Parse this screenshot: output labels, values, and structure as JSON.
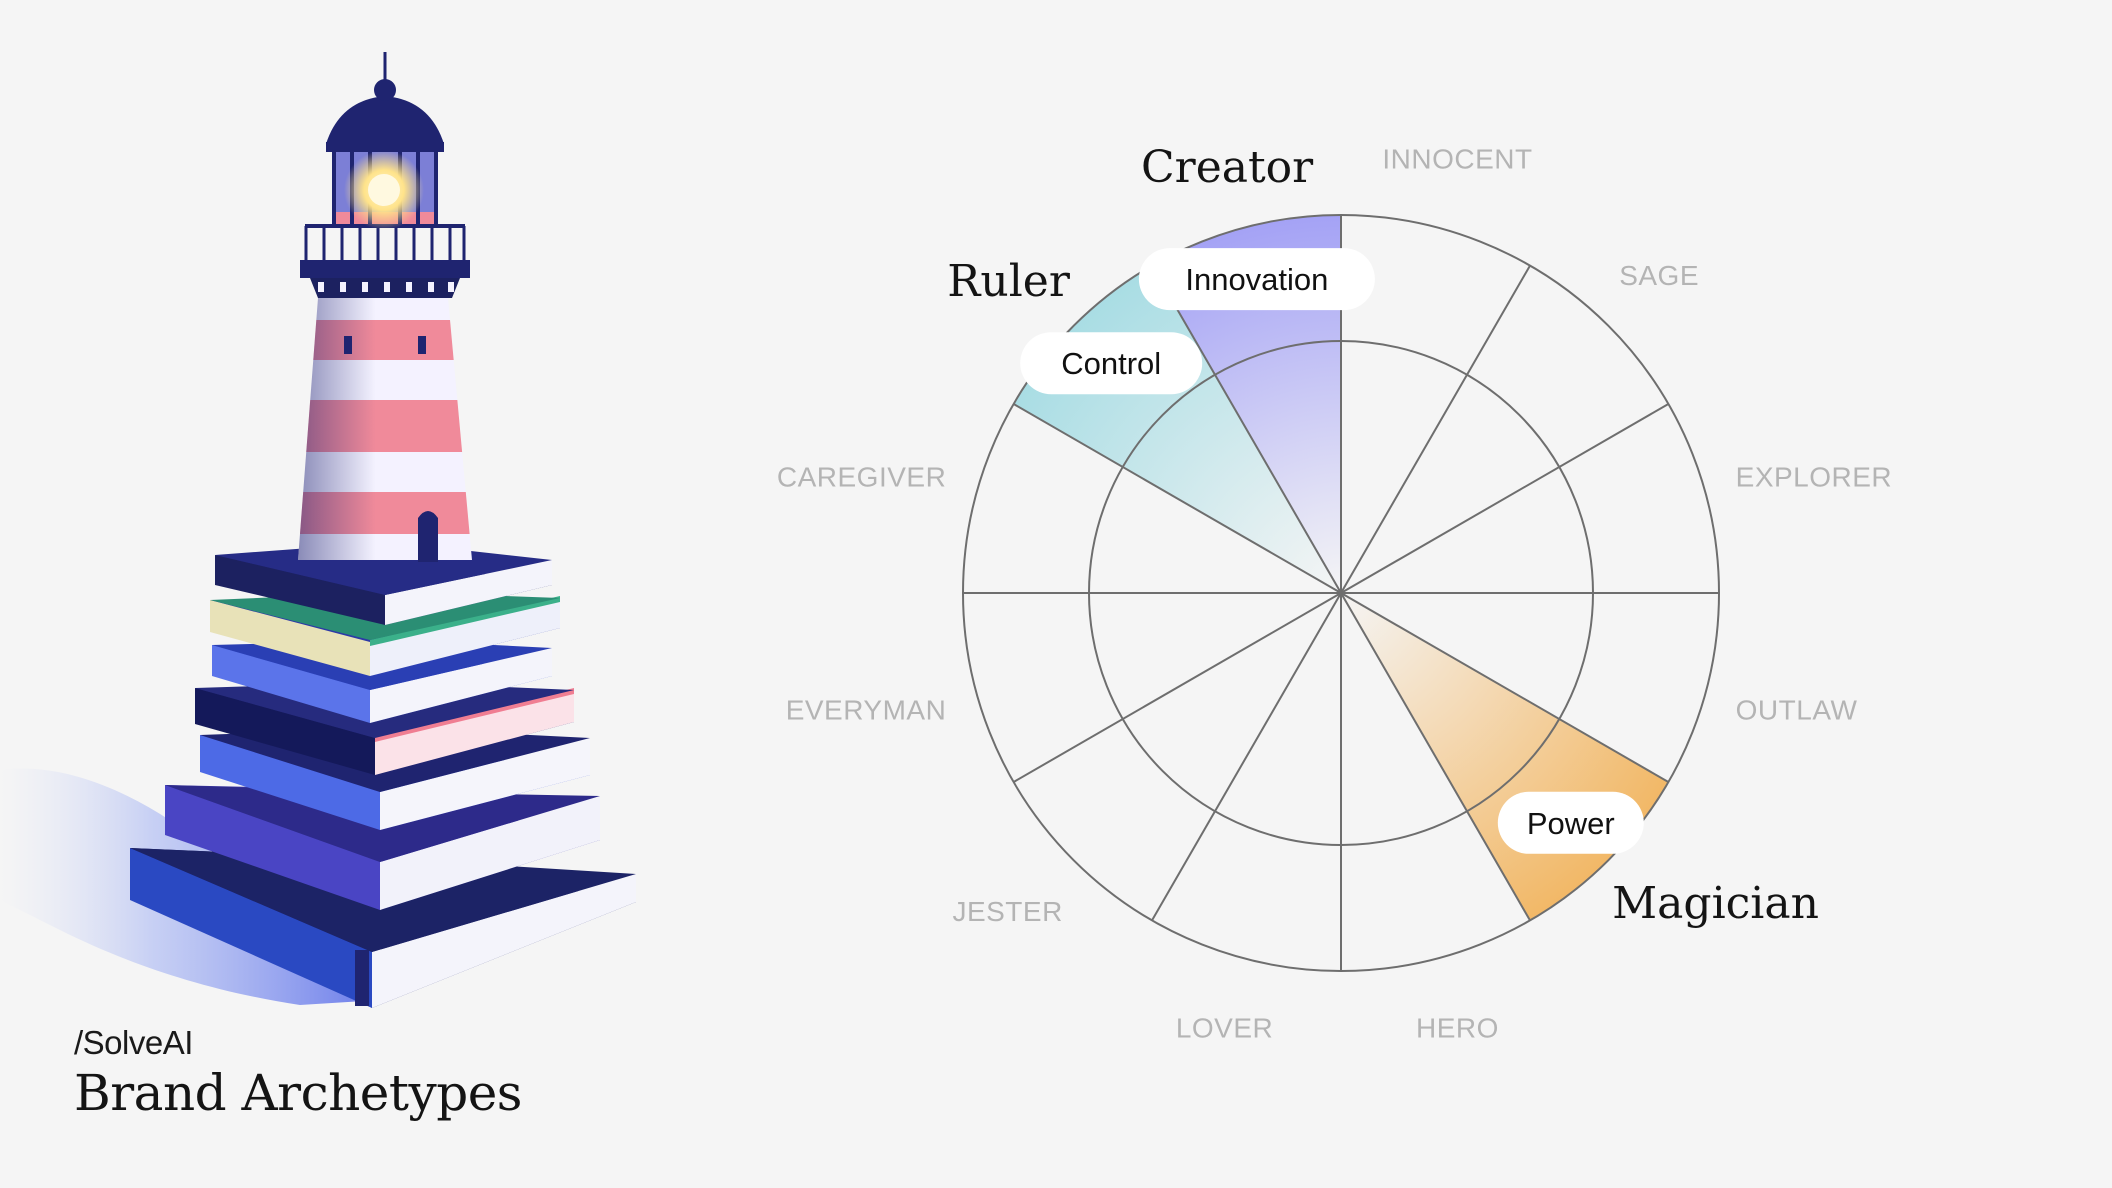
{
  "brand": {
    "name": "/SolveAI",
    "title": "Brand Archetypes"
  },
  "wheel": {
    "segments": [
      {
        "name": "INNOCENT",
        "major": false
      },
      {
        "name": "SAGE",
        "major": false
      },
      {
        "name": "EXPLORER",
        "major": false
      },
      {
        "name": "OUTLAW",
        "major": false
      },
      {
        "name": "Magician",
        "major": true,
        "highlight": "#f2b867",
        "trait": "Power"
      },
      {
        "name": "HERO",
        "major": false
      },
      {
        "name": "LOVER",
        "major": false
      },
      {
        "name": "JESTER",
        "major": false
      },
      {
        "name": "EVERYMAN",
        "major": false
      },
      {
        "name": "CAREGIVER",
        "major": false
      },
      {
        "name": "Ruler",
        "major": true,
        "highlight": "#a9dde4",
        "trait": "Control"
      },
      {
        "name": "Creator",
        "major": true,
        "highlight": "#a4a2f5",
        "trait": "Innovation"
      }
    ]
  },
  "colors": {
    "background": "#f5f5f5",
    "wheel_line": "#6e6e6e",
    "minor_label": "#b4b4b4",
    "book_navy": "#1f2470",
    "book_blue": "#3b55d6",
    "lighthouse_red": "#f08a9a",
    "lighthouse_white": "#f4f2ff"
  },
  "icons": [
    "lighthouse-icon",
    "book-stack-icon"
  ]
}
